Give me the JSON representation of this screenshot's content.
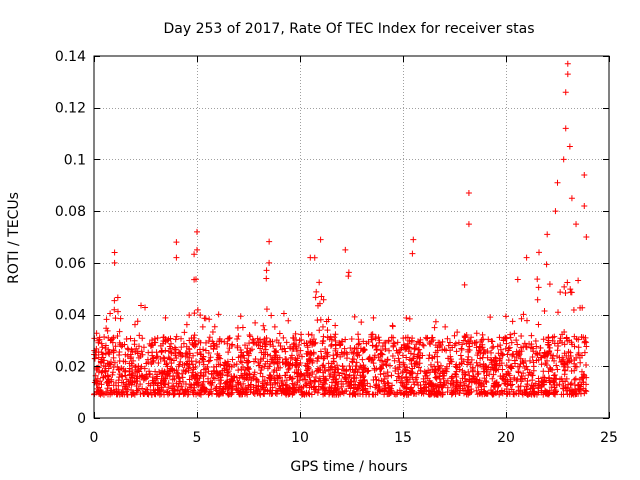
{
  "chart_data": {
    "type": "scatter",
    "title": "Day 253 of 2017, Rate Of TEC Index for receiver stas",
    "xlabel": "GPS time / hours",
    "ylabel": "ROTI / TECUs",
    "xlim": [
      0,
      25
    ],
    "ylim": [
      0,
      0.14
    ],
    "xticks": [
      0,
      5,
      10,
      15,
      20,
      25
    ],
    "yticks": [
      0,
      0.02,
      0.04,
      0.06,
      0.08,
      0.1,
      0.12,
      0.14
    ],
    "xtick_labels": [
      "0",
      "5",
      "10",
      "15",
      "20",
      "25"
    ],
    "ytick_labels": [
      "0",
      "0.02",
      "0.04",
      "0.06",
      "0.08",
      "0.1",
      "0.12",
      "0.14"
    ],
    "grid": true,
    "marker": "+",
    "color": "#ff0000",
    "grid_color": "#a0a0a0",
    "x_range_of_data": [
      0,
      23.9
    ],
    "typical_y_range": [
      0.005,
      0.03
    ],
    "notable_points": [
      {
        "x": 1.0,
        "y": 0.064
      },
      {
        "x": 1.0,
        "y": 0.06
      },
      {
        "x": 4.0,
        "y": 0.068
      },
      {
        "x": 4.0,
        "y": 0.062
      },
      {
        "x": 5.0,
        "y": 0.072
      },
      {
        "x": 5.0,
        "y": 0.065
      },
      {
        "x": 8.5,
        "y": 0.06
      },
      {
        "x": 10.5,
        "y": 0.062
      },
      {
        "x": 11.0,
        "y": 0.069
      },
      {
        "x": 12.2,
        "y": 0.065
      },
      {
        "x": 15.5,
        "y": 0.069
      },
      {
        "x": 18.2,
        "y": 0.087
      },
      {
        "x": 18.2,
        "y": 0.075
      },
      {
        "x": 21.0,
        "y": 0.062
      },
      {
        "x": 22.0,
        "y": 0.071
      },
      {
        "x": 22.4,
        "y": 0.08
      },
      {
        "x": 22.5,
        "y": 0.091
      },
      {
        "x": 22.8,
        "y": 0.1
      },
      {
        "x": 22.9,
        "y": 0.112
      },
      {
        "x": 22.9,
        "y": 0.126
      },
      {
        "x": 23.0,
        "y": 0.137
      },
      {
        "x": 23.0,
        "y": 0.133
      },
      {
        "x": 23.1,
        "y": 0.105
      },
      {
        "x": 23.2,
        "y": 0.085
      },
      {
        "x": 23.4,
        "y": 0.075
      },
      {
        "x": 23.8,
        "y": 0.094
      },
      {
        "x": 23.8,
        "y": 0.082
      },
      {
        "x": 23.9,
        "y": 0.07
      }
    ]
  }
}
